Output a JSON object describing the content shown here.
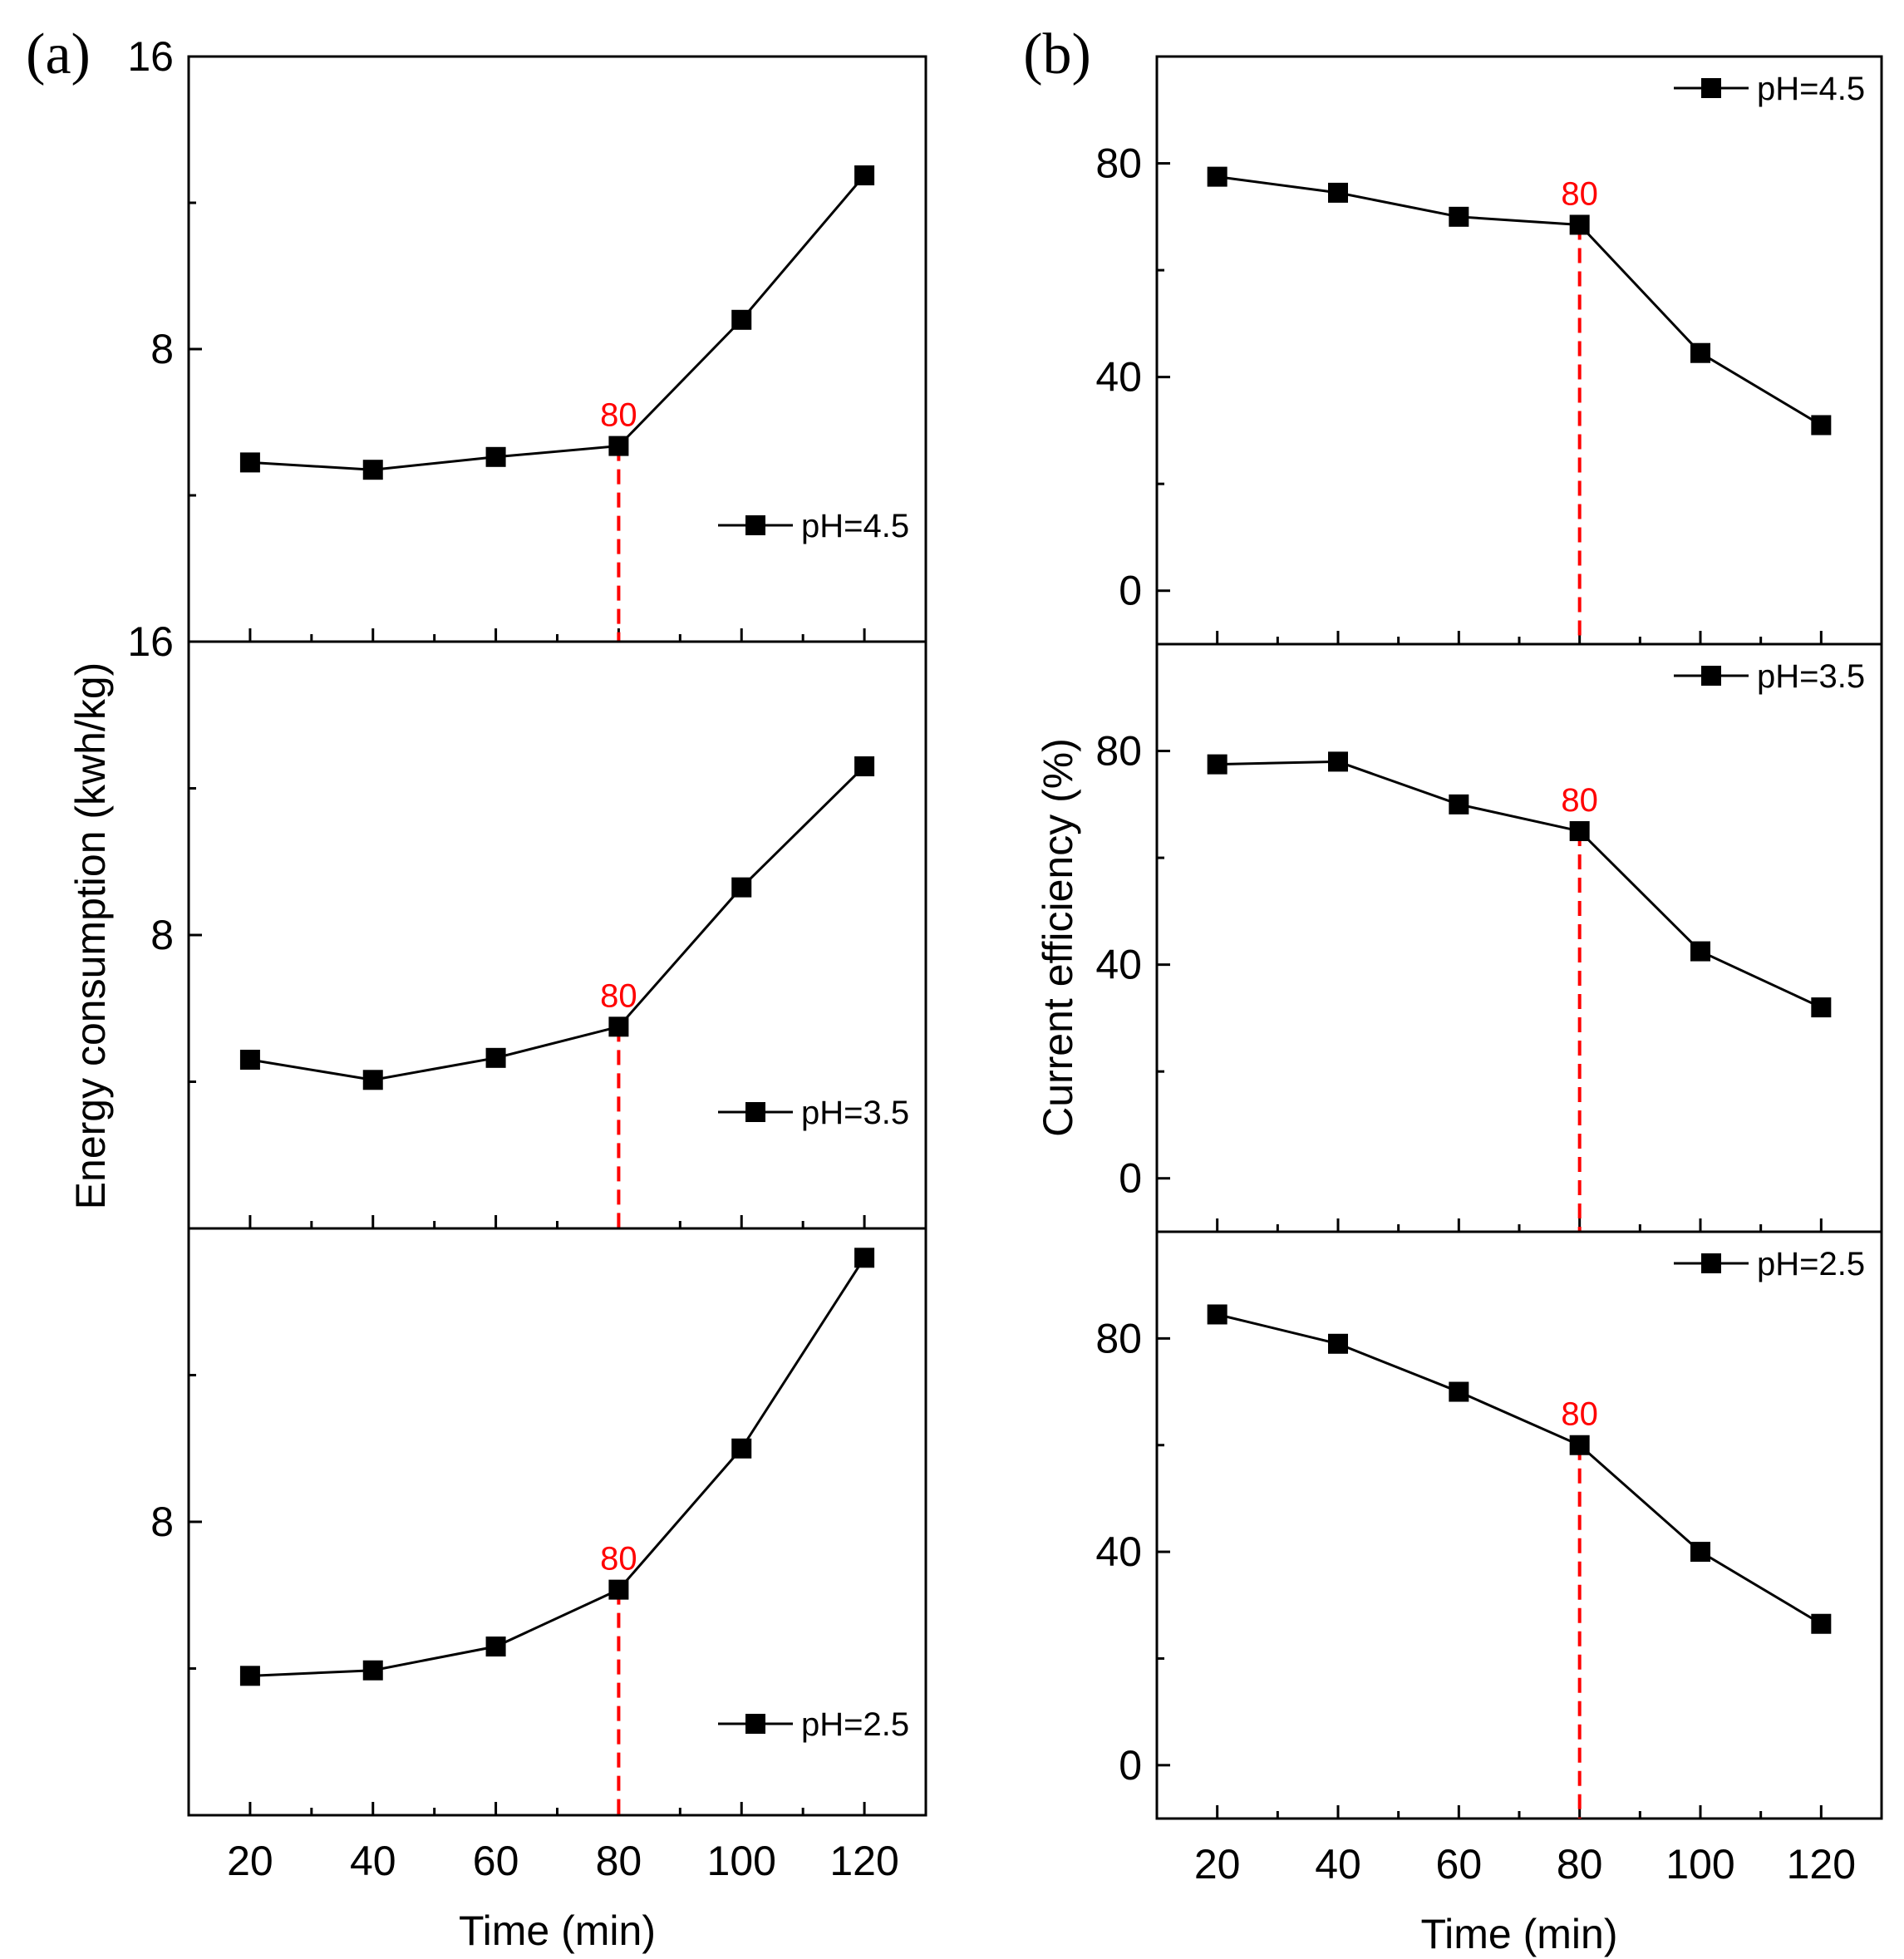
{
  "figure": {
    "panels": [
      {
        "label": "(a)",
        "ylabel": "Energy consumption (kwh/kg)",
        "xlabel": "Time (min)"
      },
      {
        "label": "(b)",
        "ylabel": "Current efficiency (%)",
        "xlabel": "Time (min)"
      }
    ]
  },
  "colors": {
    "line": "#000000",
    "marker": "#000000",
    "highlight": "#ff0000",
    "axis": "#000000"
  },
  "chart_data": [
    {
      "type": "line",
      "panel": "(a)",
      "ylabel": "Energy consumption (kwh/kg)",
      "xlabel": "Time (min)",
      "xlim": [
        10,
        130
      ],
      "xticks": [
        20,
        40,
        60,
        80,
        100,
        120
      ],
      "xticklabels": [
        "20",
        "40",
        "60",
        "80",
        "100",
        "120"
      ],
      "subplots": [
        {
          "legend": "pH=4.5",
          "legend_position": "lower-right",
          "ylim": [
            0,
            16
          ],
          "yticks": [
            8,
            16
          ],
          "yticklabels": [
            "8",
            "16"
          ],
          "x": [
            20,
            40,
            60,
            80,
            100,
            120
          ],
          "y": [
            4.9,
            4.7,
            5.05,
            5.35,
            8.8,
            12.75
          ],
          "marker_line": {
            "x": 80,
            "label": "80"
          }
        },
        {
          "legend": "pH=3.5",
          "legend_position": "lower-right",
          "ylim": [
            0,
            16
          ],
          "yticks": [
            8,
            16
          ],
          "yticklabels": [
            "8",
            "16"
          ],
          "x": [
            20,
            40,
            60,
            80,
            100,
            120
          ],
          "y": [
            4.6,
            4.05,
            4.65,
            5.5,
            9.3,
            12.6
          ],
          "marker_line": {
            "x": 80,
            "label": "80"
          }
        },
        {
          "legend": "pH=2.5",
          "legend_position": "lower-right",
          "ylim": [
            0,
            16
          ],
          "yticks": [
            8
          ],
          "yticklabels": [
            "8"
          ],
          "x": [
            20,
            40,
            60,
            80,
            100,
            120
          ],
          "y": [
            3.8,
            3.95,
            4.6,
            6.15,
            10.0,
            15.2
          ],
          "marker_line": {
            "x": 80,
            "label": "80"
          }
        }
      ]
    },
    {
      "type": "line",
      "panel": "(b)",
      "ylabel": "Current efficiency (%)",
      "xlabel": "Time (min)",
      "xlim": [
        10,
        130
      ],
      "xticks": [
        20,
        40,
        60,
        80,
        100,
        120
      ],
      "xticklabels": [
        "20",
        "40",
        "60",
        "80",
        "100",
        "120"
      ],
      "subplots": [
        {
          "legend": "pH=4.5",
          "legend_position": "top-right",
          "ylim": [
            -10,
            100
          ],
          "yticks": [
            0,
            40,
            80
          ],
          "yticklabels": [
            "0",
            "40",
            "80"
          ],
          "x": [
            20,
            40,
            60,
            80,
            100,
            120
          ],
          "y": [
            77.5,
            74.5,
            70,
            68.5,
            44.5,
            31
          ],
          "marker_line": {
            "x": 80,
            "label": "80"
          }
        },
        {
          "legend": "pH=3.5",
          "legend_position": "top-right",
          "ylim": [
            -10,
            100
          ],
          "yticks": [
            0,
            40,
            80
          ],
          "yticklabels": [
            "0",
            "40",
            "80"
          ],
          "x": [
            20,
            40,
            60,
            80,
            100,
            120
          ],
          "y": [
            77.5,
            78,
            70,
            65,
            42.5,
            32
          ],
          "marker_line": {
            "x": 80,
            "label": "80"
          }
        },
        {
          "legend": "pH=2.5",
          "legend_position": "top-right",
          "ylim": [
            -10,
            100
          ],
          "yticks": [
            0,
            40,
            80
          ],
          "yticklabels": [
            "0",
            "40",
            "80"
          ],
          "x": [
            20,
            40,
            60,
            80,
            100,
            120
          ],
          "y": [
            84.5,
            79,
            70,
            60,
            40,
            26.5
          ],
          "marker_line": {
            "x": 80,
            "label": "80"
          }
        }
      ]
    }
  ]
}
